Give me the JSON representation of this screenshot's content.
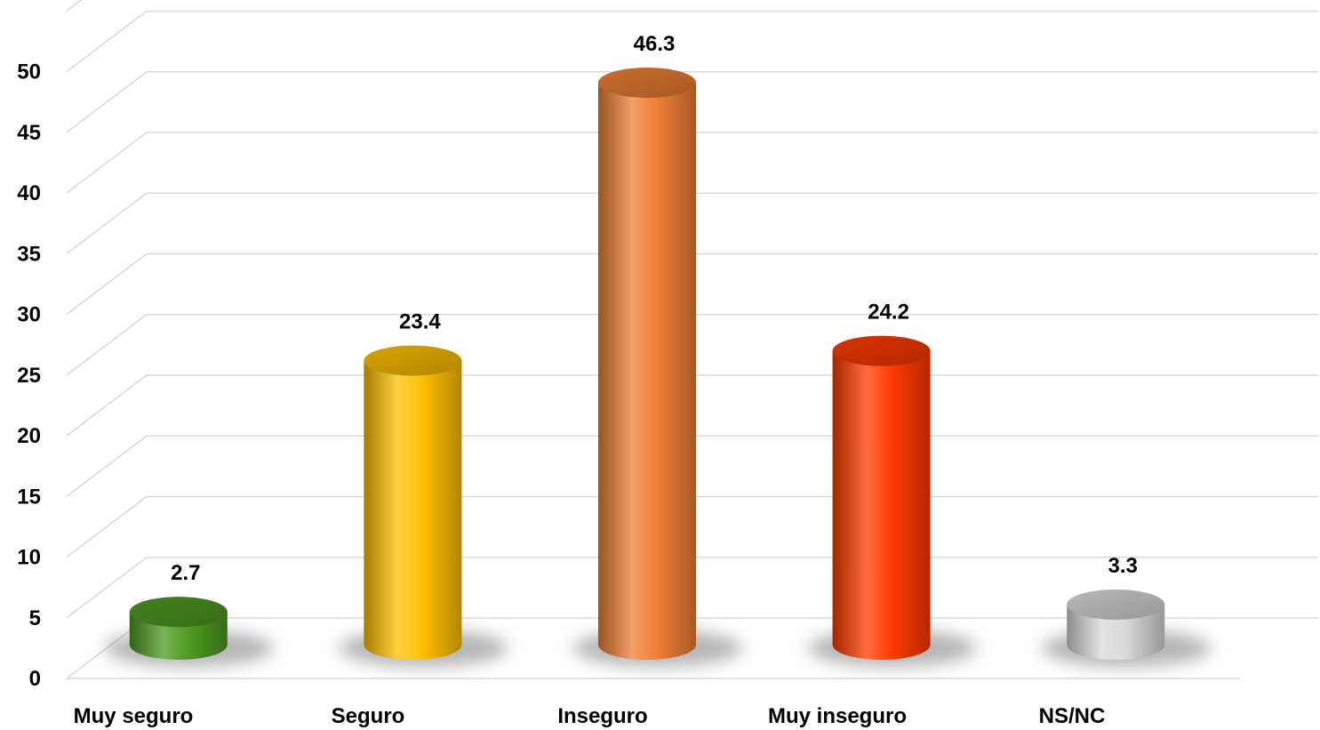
{
  "chart_data": {
    "type": "bar",
    "categories": [
      "Muy seguro",
      "Seguro",
      "Inseguro",
      "Muy inseguro",
      "NS/NC"
    ],
    "values": [
      2.7,
      23.4,
      46.3,
      24.2,
      3.3
    ],
    "value_labels": [
      "2.7",
      "23.4",
      "46.3",
      "24.2",
      "3.3"
    ],
    "colors": [
      "#4e9a22",
      "#ffc000",
      "#ef7f35",
      "#ff3b00",
      "#d9d9d9"
    ],
    "ylim": [
      0,
      50
    ],
    "yticks": [
      "0",
      "5",
      "10",
      "15",
      "20",
      "25",
      "30",
      "35",
      "40",
      "45",
      "50"
    ],
    "grid": true,
    "bar_shape": "cylinder",
    "legend": "none"
  }
}
